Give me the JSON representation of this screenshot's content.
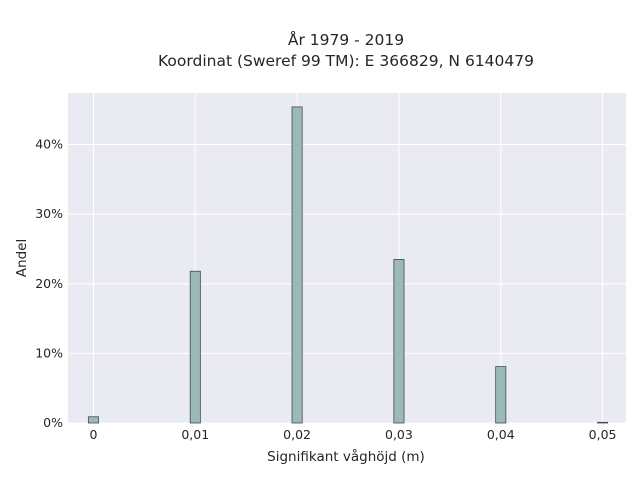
{
  "chart_data": {
    "type": "bar",
    "title_lines": [
      "År 1979 - 2019",
      "Koordinat (Sweref 99 TM): E 366829, N 6140479"
    ],
    "xlabel": "Signifikant våghöjd (m)",
    "ylabel": "Andel",
    "x_ticks": [
      0,
      0.01,
      0.02,
      0.03,
      0.04,
      0.05
    ],
    "x_tick_labels": [
      "0",
      "0,01",
      "0,02",
      "0,03",
      "0,04",
      "0,05"
    ],
    "y_ticks": [
      0,
      10,
      20,
      30,
      40
    ],
    "y_tick_labels": [
      "0%",
      "10%",
      "20%",
      "30%",
      "40%"
    ],
    "xlim": [
      -0.0025,
      0.0523
    ],
    "ylim": [
      0,
      47.4
    ],
    "bin_width": 0.001,
    "bars": [
      {
        "x": 0.0,
        "value": 0.9
      },
      {
        "x": 0.01,
        "value": 21.8
      },
      {
        "x": 0.02,
        "value": 45.4
      },
      {
        "x": 0.03,
        "value": 23.5
      },
      {
        "x": 0.04,
        "value": 8.1
      },
      {
        "x": 0.05,
        "value": 0.1
      }
    ],
    "grid": true,
    "colors": {
      "plot_background": "#eaeaf2",
      "grid": "#ffffff",
      "bar_fill": "#9db8b8",
      "bar_edge": "#3f4f4f"
    }
  }
}
